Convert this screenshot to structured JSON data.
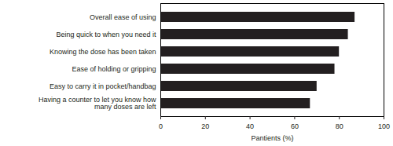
{
  "chart_data": {
    "type": "bar",
    "orientation": "horizontal",
    "xlabel": "Pantients (%)",
    "categories": [
      "Overall ease of using",
      "Being quick to when you need it",
      "Knowing the dose has been taken",
      "Ease of holding or gripping",
      "Easy to carry it in pocket/handbag",
      "Having a counter to let you know how many doses are left"
    ],
    "values": [
      87,
      84,
      80,
      78,
      70,
      67
    ],
    "color": "#231f20",
    "xlim": [
      0,
      100
    ],
    "xticks": [
      0,
      20,
      40,
      60,
      80,
      100
    ],
    "grid": false
  }
}
